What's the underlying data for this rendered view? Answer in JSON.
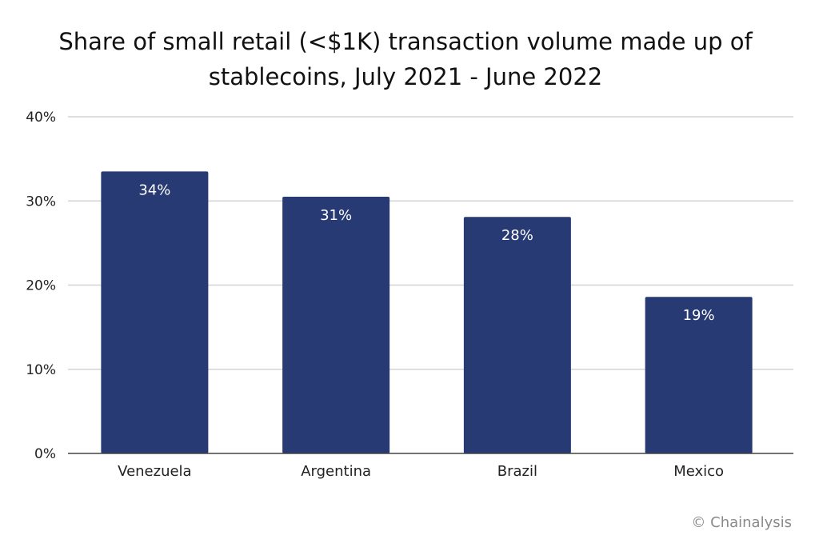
{
  "chart_data": {
    "type": "bar",
    "title_lines": [
      "Share of small retail (<$1K) transaction volume made up of",
      "stablecoins, July 2021 - June 2022"
    ],
    "categories": [
      "Venezuela",
      "Argentina",
      "Brazil",
      "Mexico"
    ],
    "values": [
      33.5,
      30.5,
      28.1,
      18.6
    ],
    "data_labels": [
      "34%",
      "31%",
      "28%",
      "19%"
    ],
    "ylim": [
      0,
      40
    ],
    "yticks": [
      0,
      10,
      20,
      30,
      40
    ],
    "ytick_labels": [
      "0%",
      "10%",
      "20%",
      "30%",
      "40%"
    ],
    "xlabel": "",
    "ylabel": "",
    "grid": true,
    "bar_color": "#283a73",
    "grid_color": "#d3d3d3",
    "axis_color": "#444444"
  },
  "footer": {
    "credit": "© Chainalysis"
  }
}
